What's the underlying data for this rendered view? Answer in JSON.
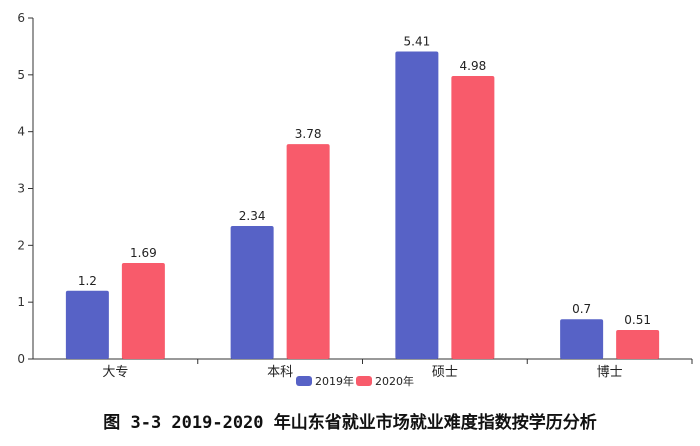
{
  "chart_data": {
    "type": "bar",
    "title": "",
    "xlabel": "",
    "ylabel": "",
    "categories": [
      "大专",
      "本科",
      "硕士",
      "博士"
    ],
    "series": [
      {
        "name": "2019年",
        "values": [
          1.2,
          2.34,
          5.41,
          0.7
        ],
        "labels": [
          "1.2",
          "2.34",
          "5.41",
          "0.7"
        ],
        "color": "#5762c6"
      },
      {
        "name": "2020年",
        "values": [
          1.69,
          3.78,
          4.98,
          0.51
        ],
        "labels": [
          "1.69",
          "3.78",
          "4.98",
          "0.51"
        ],
        "color": "#f85b6b"
      }
    ],
    "ylim": [
      0,
      6
    ],
    "yticks": [
      "0",
      "1",
      "2",
      "3",
      "4",
      "5",
      "6"
    ],
    "grid": false,
    "legend": "bottom-center"
  },
  "caption": "图 3-3 2019-2020 年山东省就业市场就业难度指数按学历分析"
}
